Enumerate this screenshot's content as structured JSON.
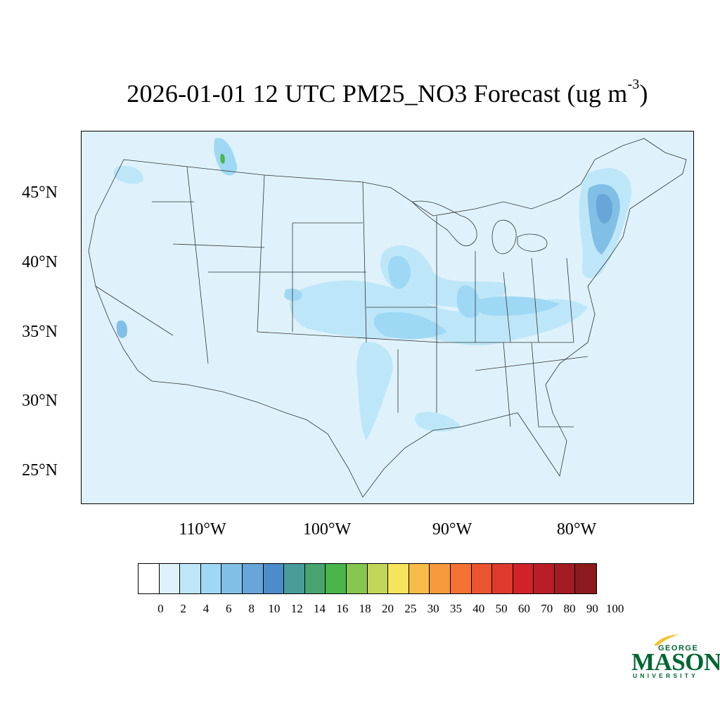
{
  "title": {
    "text": "2026-01-01 12 UTC PM25_NO3 Forecast (ug m",
    "superscript": "-3",
    "close": ")"
  },
  "map": {
    "latitude_labels": [
      "45°N",
      "40°N",
      "35°N",
      "30°N",
      "25°N"
    ],
    "longitude_labels": [
      "110°W",
      "100°W",
      "90°W",
      "80°W"
    ],
    "background_color": "#dff2fb"
  },
  "colorbar": {
    "levels": [
      "0",
      "2",
      "4",
      "6",
      "8",
      "10",
      "12",
      "14",
      "16",
      "18",
      "20",
      "25",
      "30",
      "35",
      "40",
      "50",
      "60",
      "70",
      "80",
      "90",
      "100"
    ],
    "colors": [
      "#ffffff",
      "#dff2fb",
      "#bde7f8",
      "#9fd8f4",
      "#82bfe6",
      "#68a5d8",
      "#4d8cca",
      "#4a9c9b",
      "#47a46f",
      "#49b54a",
      "#86c54f",
      "#c2d65a",
      "#f6e55c",
      "#f8bc48",
      "#f79a3d",
      "#f47233",
      "#ea5430",
      "#df3a2c",
      "#d12229",
      "#b91d26",
      "#a21c22",
      "#8c1a1d"
    ]
  },
  "logo": {
    "line1": "GEORGE",
    "line2": "MASON",
    "line3": "UNIVERSITY",
    "color": "#006633",
    "accent": "#f2c230"
  }
}
